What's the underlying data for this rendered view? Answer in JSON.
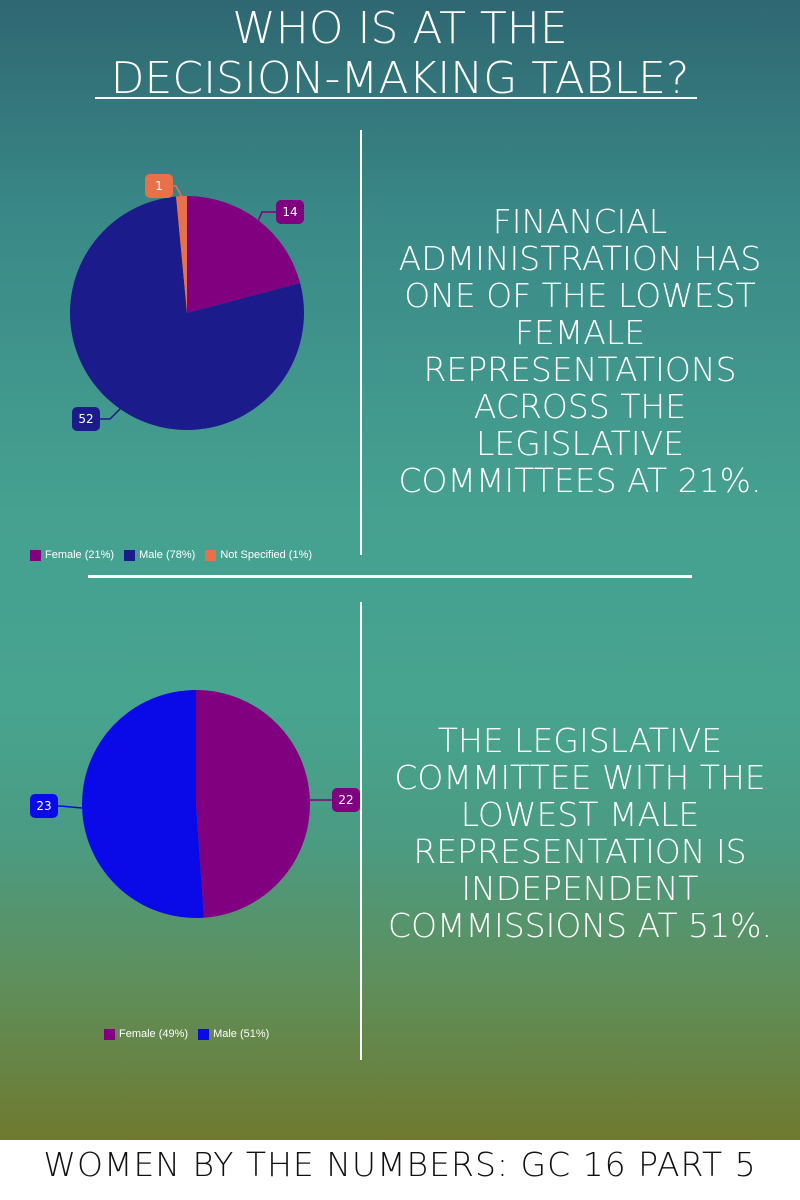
{
  "title": {
    "line1": "WHO IS AT THE",
    "line2": "DECISION-MAKING TABLE?"
  },
  "chart_data": [
    {
      "type": "pie",
      "categories": [
        "Female",
        "Male",
        "Not Specified"
      ],
      "values": [
        14,
        52,
        1
      ],
      "legend": [
        "Female (21%)",
        "Male (78%)",
        "Not Specified (1%)"
      ],
      "colors": [
        "#800080",
        "#1b1b8c",
        "#e9714a"
      ],
      "data_labels": [
        "14",
        "52",
        "1"
      ],
      "legend_position": "bottom-left"
    },
    {
      "type": "pie",
      "categories": [
        "Female",
        "Male"
      ],
      "values": [
        22,
        23
      ],
      "legend": [
        "Female (49%)",
        "Male (51%)"
      ],
      "colors": [
        "#800080",
        "#0a0ae8"
      ],
      "data_labels": [
        "22",
        "23"
      ],
      "legend_position": "bottom-center"
    }
  ],
  "statements": [
    {
      "lines": [
        "FINANCIAL",
        "ADMINISTRATION HAS",
        "ONE OF THE LOWEST",
        "FEMALE",
        "REPRESENTATIONS",
        "ACROSS THE",
        "LEGISLATIVE",
        "COMMITTEES AT 21%."
      ]
    },
    {
      "lines": [
        "THE LEGISLATIVE",
        "COMMITTEE WITH THE",
        "LOWEST MALE",
        "REPRESENTATION IS",
        "INDEPENDENT",
        "COMMISSIONS AT 51%."
      ]
    }
  ],
  "footer": {
    "text": "WOMEN BY THE NUMBERS: GC 16 PART 5"
  }
}
